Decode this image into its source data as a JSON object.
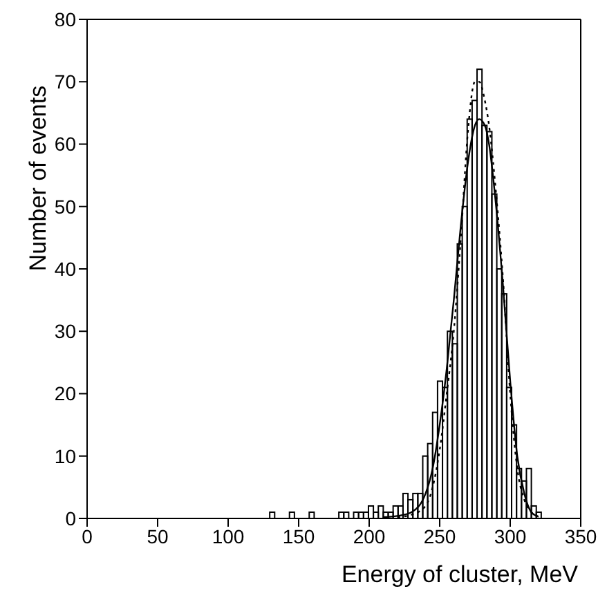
{
  "chart_data": {
    "type": "histogram",
    "xlabel": "Energy of cluster, MeV",
    "ylabel": "Number of events",
    "xlim": [
      0,
      350
    ],
    "xticks": [
      0,
      50,
      100,
      150,
      200,
      250,
      300,
      350
    ],
    "ylim": [
      0,
      80
    ],
    "yticks": [
      0,
      10,
      20,
      30,
      40,
      50,
      60,
      70,
      80
    ],
    "series": [
      {
        "color": "#000000",
        "bins": [
          0,
          3.5,
          7,
          10.5,
          14,
          17.5,
          21,
          24.5,
          28,
          31.5,
          35,
          38.5,
          42,
          45.5,
          49,
          52.5,
          56,
          59.5,
          63,
          66.5,
          70,
          73.5,
          77,
          80.5,
          84,
          87.5,
          91,
          94.5,
          98,
          101.5,
          105,
          108.5,
          112,
          115.5,
          119,
          122.5,
          126,
          129.5,
          133,
          136.5,
          140,
          143.5,
          147,
          150.5,
          154,
          157.5,
          161,
          164.5,
          168,
          171.5,
          175,
          178.5,
          182,
          185.5,
          189,
          192.5,
          196,
          199.5,
          203,
          206.5,
          210,
          213.5,
          217,
          220.5,
          224,
          227.5,
          231,
          234.5,
          238,
          241.5,
          245,
          248.5,
          252,
          255.5,
          259,
          262.5,
          266,
          269.5,
          273,
          276.5,
          280,
          283.5,
          287,
          290.5,
          294,
          297.5,
          301,
          304.5,
          308,
          311.5,
          315,
          318.5,
          322,
          325.5,
          329,
          332.5,
          336,
          339.5,
          343,
          346.5,
          350
        ],
        "values": [
          0,
          0,
          0,
          0,
          0,
          0,
          0,
          0,
          0,
          0,
          0,
          0,
          0,
          0,
          0,
          0,
          0,
          0,
          0,
          0,
          0,
          0,
          0,
          0,
          0,
          0,
          0,
          0,
          0,
          0,
          0,
          0,
          0,
          0,
          0,
          0,
          0,
          1,
          0,
          0,
          0,
          1,
          0,
          0,
          0,
          1,
          0,
          0,
          0,
          0,
          0,
          1,
          1,
          0,
          1,
          1,
          1,
          2,
          1,
          2,
          1,
          1,
          2,
          2,
          4,
          3,
          4,
          4,
          10,
          12,
          17,
          22,
          21,
          30,
          28,
          44,
          50,
          64,
          67,
          72,
          63,
          62,
          52,
          40,
          36,
          21,
          15,
          8,
          6,
          8,
          2,
          1,
          0,
          0,
          0,
          0,
          0,
          0,
          0,
          0
        ]
      },
      {
        "type": "line",
        "color": "#000000",
        "line_style": "solid",
        "x": [
          210,
          220,
          230,
          240,
          245,
          250,
          255,
          260,
          265,
          270,
          275,
          278,
          282,
          285,
          290,
          295,
          300,
          305,
          310,
          315,
          320
        ],
        "values": [
          0.2,
          0.4,
          1,
          4,
          8,
          15,
          24,
          35,
          47,
          57,
          63,
          64,
          63,
          60,
          50,
          37,
          22,
          10,
          4,
          1,
          0.3
        ]
      },
      {
        "type": "line",
        "color": "#000000",
        "line_style": "dotted",
        "x": [
          220,
          230,
          240,
          245,
          250,
          255,
          260,
          265,
          270,
          275,
          278,
          282,
          285,
          290,
          295,
          300,
          305,
          310,
          315,
          320
        ],
        "values": [
          0.2,
          0.6,
          2,
          5,
          11,
          20,
          30,
          45,
          62,
          70,
          70,
          67,
          63,
          52,
          38,
          20,
          8,
          3,
          1,
          0.3
        ]
      }
    ]
  }
}
